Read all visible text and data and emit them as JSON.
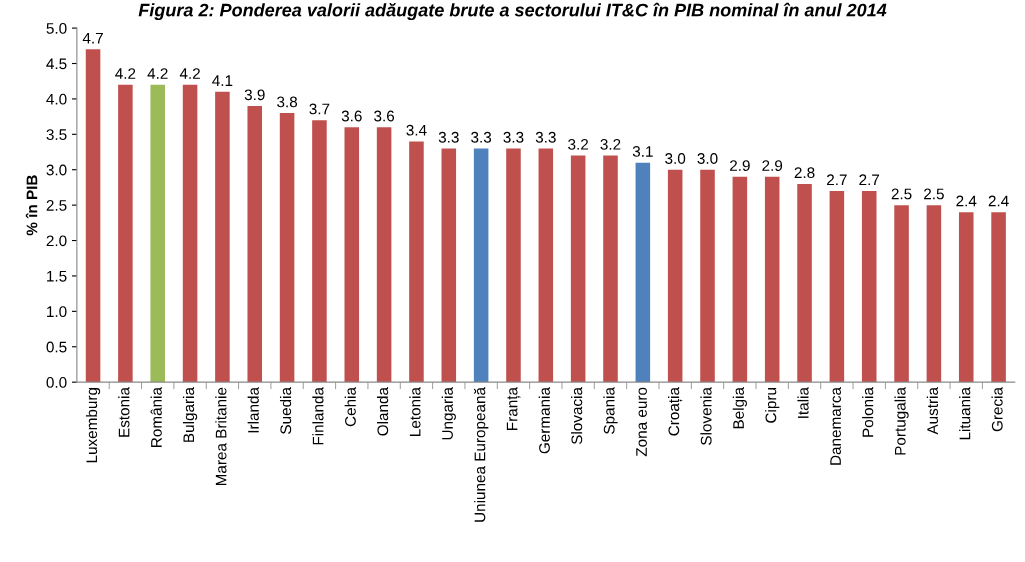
{
  "chart_data": {
    "type": "bar",
    "title": "Figura 2: Ponderea valorii adăugate brute a sectorului IT&C în PIB nominal în anul 2014",
    "ylabel": "% în PIB",
    "categories": [
      "Luxemburg",
      "Estonia",
      "România",
      "Bulgaria",
      "Marea Britanie",
      "Irlanda",
      "Suedia",
      "Finlanda",
      "Cehia",
      "Olanda",
      "Letonia",
      "Ungaria",
      "Uniunea Europeană",
      "Franța",
      "Germania",
      "Slovacia",
      "Spania",
      "Zona euro",
      "Croația",
      "Slovenia",
      "Belgia",
      "Cipru",
      "Italia",
      "Danemarca",
      "Polonia",
      "Portugalia",
      "Austria",
      "Lituania",
      "Grecia"
    ],
    "values": [
      4.7,
      4.2,
      4.2,
      4.2,
      4.1,
      3.9,
      3.8,
      3.7,
      3.6,
      3.6,
      3.4,
      3.3,
      3.3,
      3.3,
      3.3,
      3.2,
      3.2,
      3.1,
      3.0,
      3.0,
      2.9,
      2.9,
      2.8,
      2.7,
      2.7,
      2.5,
      2.5,
      2.4,
      2.4
    ],
    "colors": [
      "#c0504d",
      "#c0504d",
      "#9bbb59",
      "#c0504d",
      "#c0504d",
      "#c0504d",
      "#c0504d",
      "#c0504d",
      "#c0504d",
      "#c0504d",
      "#c0504d",
      "#c0504d",
      "#4f81bd",
      "#c0504d",
      "#c0504d",
      "#c0504d",
      "#c0504d",
      "#4f81bd",
      "#c0504d",
      "#c0504d",
      "#c0504d",
      "#c0504d",
      "#c0504d",
      "#c0504d",
      "#c0504d",
      "#c0504d",
      "#c0504d",
      "#c0504d",
      "#c0504d"
    ],
    "ylim": [
      0,
      5
    ],
    "yticks": [
      {
        "value": 0,
        "label": "0.0"
      },
      {
        "value": 0.5,
        "label": "0.5"
      },
      {
        "value": 1,
        "label": "1.0"
      },
      {
        "value": 1.5,
        "label": "1.5"
      },
      {
        "value": 2,
        "label": "2.0"
      },
      {
        "value": 2.5,
        "label": "2.5"
      },
      {
        "value": 3,
        "label": "3.0"
      },
      {
        "value": 3.5,
        "label": "3.5"
      },
      {
        "value": 4,
        "label": "4.0"
      },
      {
        "value": 4.5,
        "label": "4.5"
      },
      {
        "value": 5,
        "label": "5.0"
      }
    ],
    "value_labels": [
      "4.7",
      "4.2",
      "4.2",
      "4.2",
      "4.1",
      "3.9",
      "3.8",
      "3.7",
      "3.6",
      "3.6",
      "3.4",
      "3.3",
      "3.3",
      "3.3",
      "3.3",
      "3.2",
      "3.2",
      "3.1",
      "3.0",
      "3.0",
      "2.9",
      "2.9",
      "2.8",
      "2.7",
      "2.7",
      "2.5",
      "2.5",
      "2.4",
      "2.4"
    ],
    "grid": false,
    "legend": false
  }
}
